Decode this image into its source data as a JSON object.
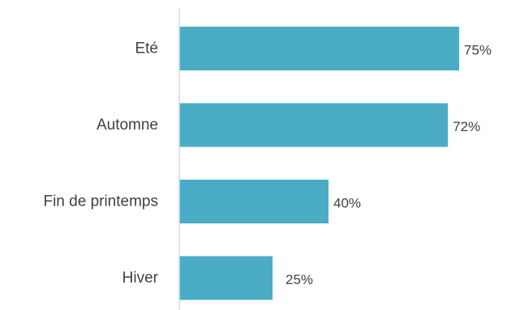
{
  "chart_data": {
    "type": "bar",
    "orientation": "horizontal",
    "categories": [
      "Eté",
      "Automne",
      "Fin de printemps",
      "Hiver"
    ],
    "values": [
      75,
      72,
      40,
      25
    ],
    "value_labels": [
      "75%",
      "72%",
      "40%",
      "25%"
    ],
    "unit": "%",
    "xlim": [
      0,
      100
    ],
    "title": "",
    "xlabel": "",
    "ylabel": "",
    "grid": false,
    "legend": "none",
    "colors": {
      "bar": "#4BACC6",
      "axis": "#D9D9D9",
      "text": "#404040"
    }
  }
}
